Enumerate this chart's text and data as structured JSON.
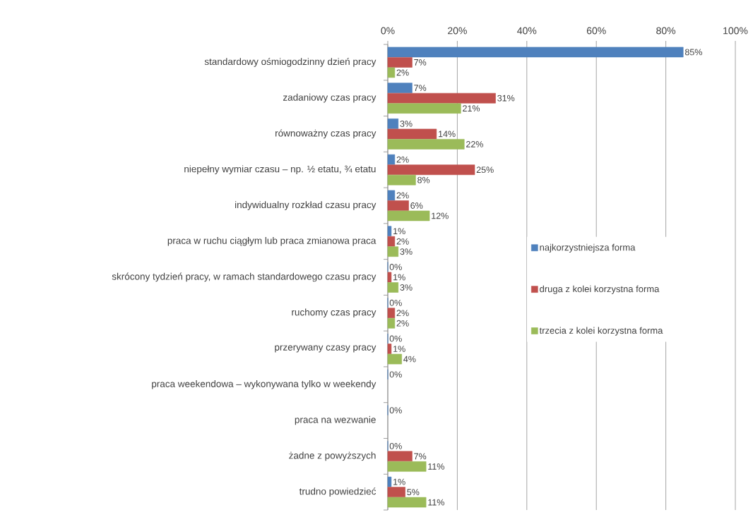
{
  "chart_data": {
    "type": "bar",
    "orientation": "horizontal",
    "categories": [
      "standardowy ośmiogodzinny dzień pracy",
      "zadaniowy czas pracy",
      "równoważny czas pracy",
      "niepełny wymiar czasu – np. ½ etatu, ¾ etatu",
      "indywidualny rozkład czasu pracy",
      "praca w ruchu ciągłym lub praca zmianowa praca",
      "skrócony tydzień pracy, w ramach standardowego czasu pracy",
      "ruchomy czas pracy",
      "przerywany czasy pracy",
      "praca weekendowa – wykonywana tylko w weekendy",
      "praca na wezwanie",
      "żadne z powyższych",
      "trudno powiedzieć"
    ],
    "series": [
      {
        "name": "najkorzystniejsza forma",
        "color": "#4f81bd",
        "values": [
          85,
          7,
          3,
          2,
          2,
          1,
          0,
          0,
          0,
          0,
          0,
          0,
          1
        ],
        "value_labels": [
          "85%",
          "7%",
          "3%",
          "2%",
          "2%",
          "1%",
          "0%",
          "0%",
          "0%",
          "0%",
          "0%",
          "0%",
          "1%"
        ]
      },
      {
        "name": "druga z kolei korzystna forma",
        "color": "#c0504d",
        "values": [
          7,
          31,
          14,
          25,
          6,
          2,
          1,
          2,
          1,
          null,
          null,
          7,
          5
        ],
        "value_labels": [
          "7%",
          "31%",
          "14%",
          "25%",
          "6%",
          "2%",
          "1%",
          "2%",
          "1%",
          null,
          null,
          "7%",
          "5%"
        ]
      },
      {
        "name": "trzecia z kolei korzystna forma",
        "color": "#9bbb59",
        "values": [
          2,
          21,
          22,
          8,
          12,
          3,
          3,
          2,
          4,
          null,
          null,
          11,
          11
        ],
        "value_labels": [
          "2%",
          "21%",
          "22%",
          "8%",
          "12%",
          "3%",
          "3%",
          "2%",
          "4%",
          null,
          null,
          "11%",
          "11%"
        ]
      }
    ],
    "xlim": [
      0,
      100
    ],
    "xticks": [
      {
        "value": 0,
        "label": "0%"
      },
      {
        "value": 20,
        "label": "20%"
      },
      {
        "value": 40,
        "label": "40%"
      },
      {
        "value": 60,
        "label": "60%"
      },
      {
        "value": 80,
        "label": "80%"
      },
      {
        "value": 100,
        "label": "100%"
      }
    ],
    "grid": "x",
    "legend": "right"
  }
}
